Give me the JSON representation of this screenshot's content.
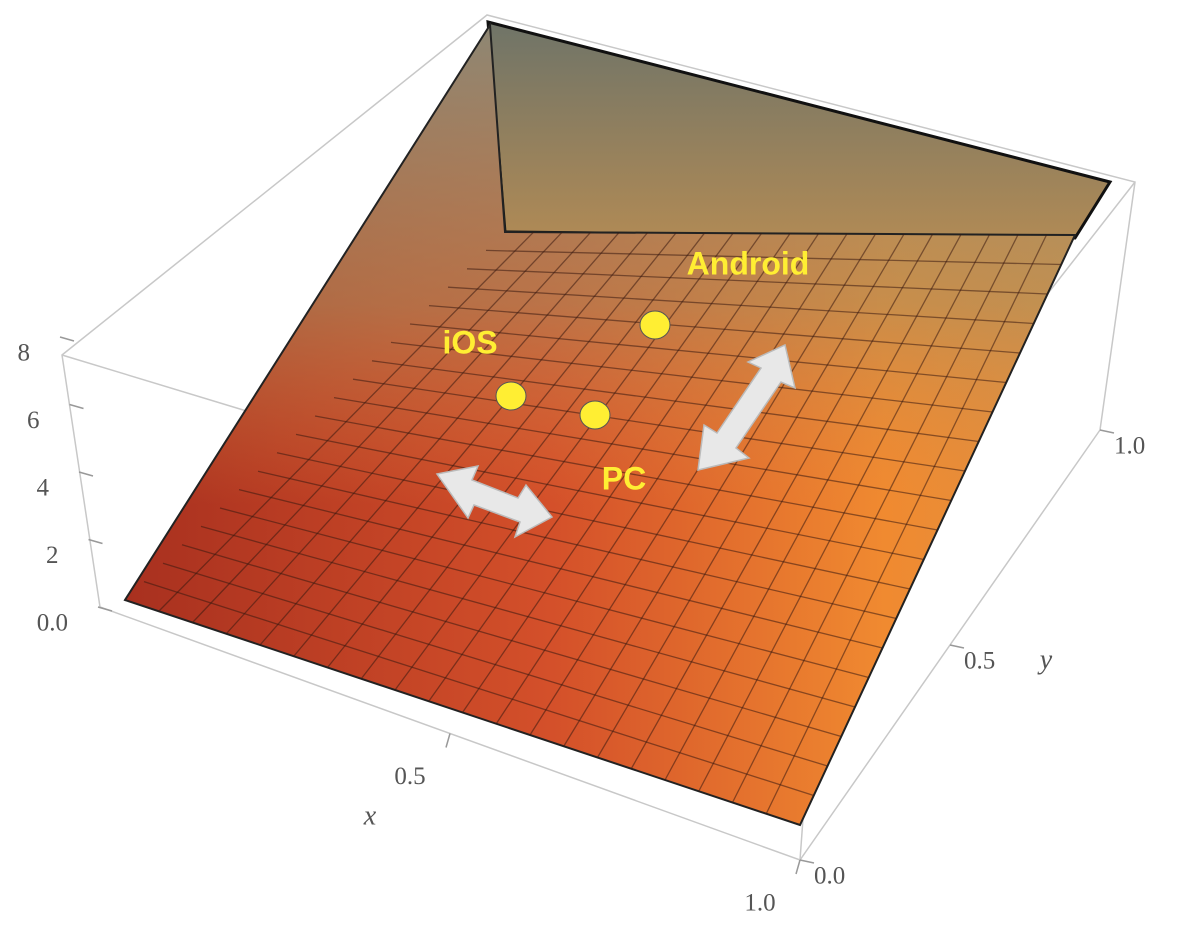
{
  "chart_data": {
    "type": "surface3d",
    "xlabel": "x",
    "ylabel": "y",
    "xlim": [
      0,
      1
    ],
    "ylim": [
      0,
      1
    ],
    "zlim": [
      0,
      8
    ],
    "xticks": [
      0.5,
      {
        "value": 1,
        "label": "1.0"
      }
    ],
    "yticks": [
      {
        "value": 0,
        "label": "0.0"
      },
      0.5,
      {
        "value": 1,
        "label": "1.0"
      }
    ],
    "zticks": [
      {
        "value": 0,
        "label": "0.0"
      },
      2,
      4,
      6,
      8
    ],
    "annotations": [
      "iOS",
      "PC",
      "Android"
    ],
    "annotation_color": "#ffee33"
  }
}
